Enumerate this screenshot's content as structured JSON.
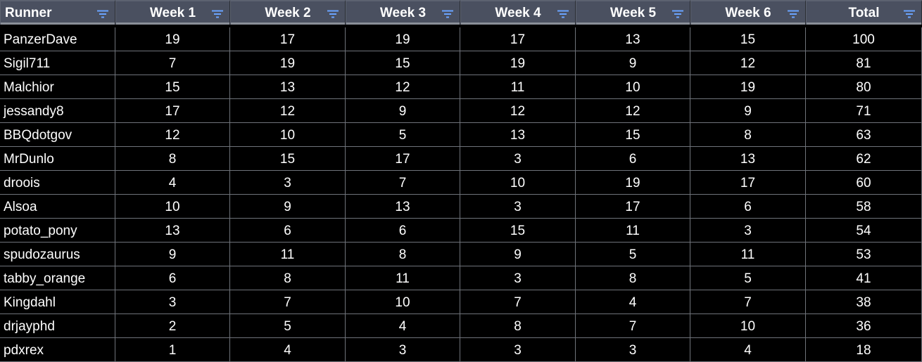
{
  "colors": {
    "background": "#000000",
    "header_background": "#4a5060",
    "text": "#ffffff",
    "grid_line": "#6f737a",
    "filter_icon": "#6aa4ff"
  },
  "columns": [
    {
      "label": "Runner",
      "key": "runner",
      "icon": "filter-icon"
    },
    {
      "label": "Week 1",
      "key": "w1",
      "icon": "filter-icon"
    },
    {
      "label": "Week 2",
      "key": "w2",
      "icon": "filter-icon"
    },
    {
      "label": "Week 3",
      "key": "w3",
      "icon": "filter-icon"
    },
    {
      "label": "Week 4",
      "key": "w4",
      "icon": "filter-icon"
    },
    {
      "label": "Week 5",
      "key": "w5",
      "icon": "filter-icon"
    },
    {
      "label": "Week 6",
      "key": "w6",
      "icon": "filter-icon"
    },
    {
      "label": "Total",
      "key": "total",
      "icon": "filter-icon"
    }
  ],
  "rows": [
    [
      "PanzerDave",
      "19",
      "17",
      "19",
      "17",
      "13",
      "15",
      "100"
    ],
    [
      "Sigil711",
      "7",
      "19",
      "15",
      "19",
      "9",
      "12",
      "81"
    ],
    [
      "Malchior",
      "15",
      "13",
      "12",
      "11",
      "10",
      "19",
      "80"
    ],
    [
      "jessandy8",
      "17",
      "12",
      "9",
      "12",
      "12",
      "9",
      "71"
    ],
    [
      "BBQdotgov",
      "12",
      "10",
      "5",
      "13",
      "15",
      "8",
      "63"
    ],
    [
      "MrDunlo",
      "8",
      "15",
      "17",
      "3",
      "6",
      "13",
      "62"
    ],
    [
      "droois",
      "4",
      "3",
      "7",
      "10",
      "19",
      "17",
      "60"
    ],
    [
      "Alsoa",
      "10",
      "9",
      "13",
      "3",
      "17",
      "6",
      "58"
    ],
    [
      "potato_pony",
      "13",
      "6",
      "6",
      "15",
      "11",
      "3",
      "54"
    ],
    [
      "spudozaurus",
      "9",
      "11",
      "8",
      "9",
      "5",
      "11",
      "53"
    ],
    [
      "tabby_orange",
      "6",
      "8",
      "11",
      "3",
      "8",
      "5",
      "41"
    ],
    [
      "Kingdahl",
      "3",
      "7",
      "10",
      "7",
      "4",
      "7",
      "38"
    ],
    [
      "drjayphd",
      "2",
      "5",
      "4",
      "8",
      "7",
      "10",
      "36"
    ],
    [
      "pdxrex",
      "1",
      "4",
      "3",
      "3",
      "3",
      "4",
      "18"
    ]
  ]
}
